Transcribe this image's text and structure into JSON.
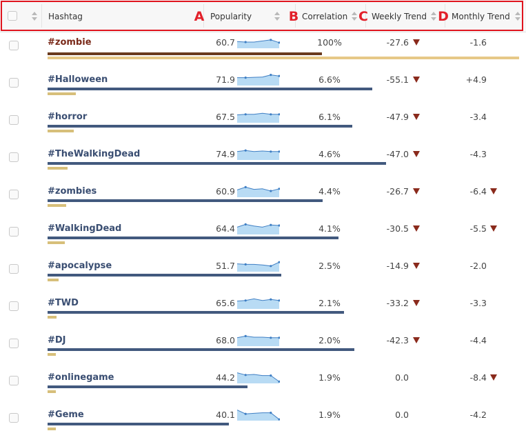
{
  "header": {
    "col_hashtag": "Hashtag",
    "col_popularity": "Popularity",
    "col_correlation": "Correlation",
    "col_weekly": "Weekly Trend",
    "col_monthly": "Monthly Trend",
    "marker_a": "A",
    "marker_b": "B",
    "marker_c": "C",
    "marker_d": "D"
  },
  "rows": [
    {
      "tag": "#zombie",
      "popularity": "60.7",
      "popularity_value": 60.7,
      "correlation": "100%",
      "correlation_value": 1.0,
      "weekly": "-27.6",
      "weekly_down": true,
      "monthly": "-1.6",
      "monthly_down": false,
      "active": true,
      "spark": [
        0.45,
        0.5,
        0.5,
        0.4,
        0.3,
        0.55
      ]
    },
    {
      "tag": "#Halloween",
      "popularity": "71.9",
      "popularity_value": 71.9,
      "correlation": "6.6%",
      "correlation_value": 0.066,
      "weekly": "-55.1",
      "weekly_down": true,
      "monthly": "+4.9",
      "monthly_down": false,
      "active": false,
      "spark": [
        0.35,
        0.35,
        0.32,
        0.3,
        0.1,
        0.2
      ]
    },
    {
      "tag": "#horror",
      "popularity": "67.5",
      "popularity_value": 67.5,
      "correlation": "6.1%",
      "correlation_value": 0.061,
      "weekly": "-47.9",
      "weekly_down": true,
      "monthly": "-3.4",
      "monthly_down": false,
      "active": false,
      "spark": [
        0.35,
        0.3,
        0.3,
        0.2,
        0.3,
        0.3
      ]
    },
    {
      "tag": "#TheWalkingDead",
      "popularity": "74.9",
      "popularity_value": 74.9,
      "correlation": "4.6%",
      "correlation_value": 0.046,
      "weekly": "-47.0",
      "weekly_down": true,
      "monthly": "-4.3",
      "monthly_down": false,
      "active": false,
      "spark": [
        0.3,
        0.2,
        0.3,
        0.25,
        0.3,
        0.3
      ]
    },
    {
      "tag": "#zombies",
      "popularity": "60.9",
      "popularity_value": 60.9,
      "correlation": "4.4%",
      "correlation_value": 0.044,
      "weekly": "-26.7",
      "weekly_down": true,
      "monthly": "-6.4",
      "monthly_down": true,
      "active": false,
      "spark": [
        0.4,
        0.15,
        0.35,
        0.3,
        0.5,
        0.3
      ]
    },
    {
      "tag": "#WalkingDead",
      "popularity": "64.4",
      "popularity_value": 64.4,
      "correlation": "4.1%",
      "correlation_value": 0.041,
      "weekly": "-30.5",
      "weekly_down": true,
      "monthly": "-5.5",
      "monthly_down": true,
      "active": false,
      "spark": [
        0.4,
        0.15,
        0.3,
        0.4,
        0.2,
        0.25
      ]
    },
    {
      "tag": "#apocalypse",
      "popularity": "51.7",
      "popularity_value": 51.7,
      "correlation": "2.5%",
      "correlation_value": 0.025,
      "weekly": "-14.9",
      "weekly_down": true,
      "monthly": "-2.0",
      "monthly_down": false,
      "active": false,
      "spark": [
        0.35,
        0.4,
        0.4,
        0.45,
        0.55,
        0.2
      ]
    },
    {
      "tag": "#TWD",
      "popularity": "65.6",
      "popularity_value": 65.6,
      "correlation": "2.1%",
      "correlation_value": 0.021,
      "weekly": "-33.2",
      "weekly_down": true,
      "monthly": "-3.3",
      "monthly_down": false,
      "active": false,
      "spark": [
        0.35,
        0.3,
        0.15,
        0.3,
        0.2,
        0.3
      ]
    },
    {
      "tag": "#DJ",
      "popularity": "68.0",
      "popularity_value": 68.0,
      "correlation": "2.0%",
      "correlation_value": 0.02,
      "weekly": "-42.3",
      "weekly_down": true,
      "monthly": "-4.4",
      "monthly_down": false,
      "active": false,
      "spark": [
        0.3,
        0.15,
        0.25,
        0.25,
        0.3,
        0.3
      ]
    },
    {
      "tag": "#onlinegame",
      "popularity": "44.2",
      "popularity_value": 44.2,
      "correlation": "1.9%",
      "correlation_value": 0.019,
      "weekly": "0.0",
      "weekly_down": false,
      "monthly": "-8.4",
      "monthly_down": true,
      "active": false,
      "spark": [
        0.1,
        0.3,
        0.25,
        0.35,
        0.35,
        0.9
      ]
    },
    {
      "tag": "#Geme",
      "popularity": "40.1",
      "popularity_value": 40.1,
      "correlation": "1.9%",
      "correlation_value": 0.019,
      "weekly": "0.0",
      "weekly_down": false,
      "monthly": "-4.2",
      "monthly_down": false,
      "active": false,
      "spark": [
        0.1,
        0.45,
        0.4,
        0.35,
        0.35,
        0.95
      ]
    }
  ],
  "colors": {
    "highlight_frame": "#e0141e",
    "popularity_bar": "#42597e",
    "correlation_bar": "#d7bf7a",
    "spark_fill": "#b8dbf4",
    "spark_line": "#3f7fc4",
    "down_arrow": "#8a2a1c"
  }
}
